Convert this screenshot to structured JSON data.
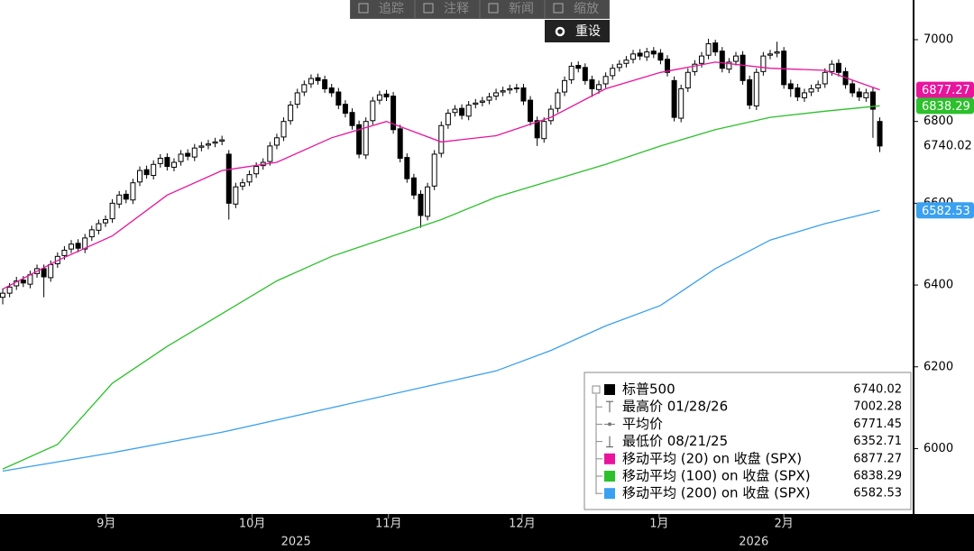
{
  "toolbar": {
    "buttons": [
      "追踪",
      "注释",
      "新闻",
      "缩放"
    ],
    "reset": "重设"
  },
  "chart_data": {
    "type": "candlestick",
    "xlim": [
      -0.4,
      132.8
    ],
    "ylim": [
      5840,
      7097
    ],
    "yticks": [
      6000,
      6200,
      6400,
      6600,
      6800,
      7000
    ],
    "xticks": [
      {
        "value": 15.1,
        "label": "9月"
      },
      {
        "value": 36.4,
        "label": "10月"
      },
      {
        "value": 56.3,
        "label": "11月"
      },
      {
        "value": 75.8,
        "label": "12月"
      },
      {
        "value": 95.8,
        "label": "1月"
      },
      {
        "value": 114,
        "label": "2月"
      }
    ],
    "year_labels": [
      {
        "value": 42.8,
        "label": "2025"
      },
      {
        "value": 109.6,
        "label": "2026"
      }
    ],
    "ohlc": {
      "name": "标普500",
      "x": [
        0,
        1,
        2,
        3,
        4,
        5,
        6,
        7,
        8,
        9,
        10,
        11,
        12,
        13,
        14,
        15,
        16,
        17,
        18,
        19,
        20,
        21,
        22,
        23,
        24,
        25,
        26,
        27,
        28,
        29,
        30,
        31,
        32,
        33,
        34,
        35,
        36,
        37,
        38,
        39,
        40,
        41,
        42,
        43,
        44,
        45,
        46,
        47,
        48,
        49,
        50,
        51,
        52,
        53,
        54,
        55,
        56,
        57,
        58,
        59,
        60,
        61,
        62,
        63,
        64,
        65,
        66,
        67,
        68,
        69,
        70,
        71,
        72,
        73,
        74,
        75,
        76,
        77,
        78,
        79,
        80,
        81,
        82,
        83,
        84,
        85,
        86,
        87,
        88,
        89,
        90,
        91,
        92,
        93,
        94,
        95,
        96,
        97,
        98,
        99,
        100,
        101,
        102,
        103,
        104,
        105,
        106,
        107,
        108,
        109,
        110,
        111,
        112,
        113,
        114,
        115,
        116,
        117,
        118,
        119,
        120,
        121,
        122,
        123,
        124,
        125,
        126,
        127,
        128
      ],
      "open": [
        6370,
        6380,
        6398,
        6412,
        6402,
        6428,
        6440,
        6418,
        6452,
        6472,
        6488,
        6502,
        6488,
        6518,
        6534,
        6552,
        6562,
        6598,
        6622,
        6608,
        6652,
        6682,
        6668,
        6697,
        6712,
        6688,
        6702,
        6722,
        6713,
        6737,
        6742,
        6747,
        6752,
        6720,
        6598,
        6642,
        6652,
        6672,
        6692,
        6702,
        6742,
        6762,
        6802,
        6842,
        6872,
        6892,
        6907,
        6902,
        6882,
        6872,
        6842,
        6822,
        6792,
        6718,
        6802,
        6852,
        6867,
        6862,
        6782,
        6712,
        6662,
        6622,
        6568,
        6642,
        6722,
        6792,
        6822,
        6832,
        6813,
        6842,
        6847,
        6852,
        6862,
        6872,
        6877,
        6882,
        6882,
        6852,
        6802,
        6758,
        6802,
        6832,
        6872,
        6902,
        6937,
        6932,
        6902,
        6878,
        6892,
        6912,
        6932,
        6942,
        6952,
        6967,
        6958,
        6972,
        6967,
        6952,
        6900,
        6808,
        6882,
        6922,
        6942,
        6962,
        6992,
        6972,
        6928,
        6947,
        6962,
        6902,
        6838,
        6922,
        6962,
        6967,
        6972,
        6892,
        6882,
        6858,
        6872,
        6882,
        6892,
        6922,
        6942,
        6922,
        6892,
        6872,
        6858,
        6872,
        6800
      ],
      "high": [
        6392,
        6405,
        6420,
        6422,
        6435,
        6450,
        6450,
        6460,
        6480,
        6495,
        6510,
        6512,
        6525,
        6545,
        6560,
        6570,
        6610,
        6630,
        6632,
        6660,
        6690,
        6692,
        6705,
        6720,
        6722,
        6710,
        6730,
        6732,
        6745,
        6750,
        6755,
        6760,
        6765,
        6730,
        6650,
        6660,
        6680,
        6700,
        6710,
        6750,
        6770,
        6810,
        6850,
        6880,
        6900,
        6915,
        6917,
        6912,
        6892,
        6882,
        6852,
        6832,
        6802,
        6810,
        6860,
        6875,
        6877,
        6872,
        6792,
        6722,
        6672,
        6632,
        6650,
        6730,
        6800,
        6830,
        6840,
        6842,
        6850,
        6855,
        6860,
        6870,
        6880,
        6885,
        6890,
        6892,
        6892,
        6862,
        6812,
        6810,
        6840,
        6880,
        6910,
        6945,
        6947,
        6942,
        6912,
        6900,
        6920,
        6940,
        6950,
        6960,
        6975,
        6977,
        6980,
        6982,
        6977,
        6962,
        6910,
        6890,
        6930,
        6950,
        6970,
        7002.28,
        7000,
        6982,
        6955,
        6970,
        6972,
        6912,
        6930,
        6970,
        6975,
        6995,
        6982,
        6902,
        6892,
        6880,
        6890,
        6900,
        6930,
        6950,
        6952,
        6932,
        6902,
        6882,
        6880,
        6882,
        6810
      ],
      "low": [
        6352.71,
        6370,
        6388,
        6395,
        6392,
        6418,
        6370,
        6408,
        6442,
        6462,
        6478,
        6480,
        6478,
        6508,
        6524,
        6542,
        6552,
        6588,
        6600,
        6598,
        6642,
        6660,
        6658,
        6687,
        6680,
        6678,
        6692,
        6705,
        6703,
        6727,
        6732,
        6737,
        6742,
        6560,
        6588,
        6632,
        6642,
        6662,
        6682,
        6692,
        6732,
        6752,
        6792,
        6832,
        6862,
        6882,
        6890,
        6870,
        6860,
        6830,
        6810,
        6780,
        6710,
        6708,
        6792,
        6842,
        6850,
        6770,
        6700,
        6650,
        6610,
        6540,
        6558,
        6632,
        6712,
        6782,
        6812,
        6805,
        6803,
        6832,
        6837,
        6842,
        6852,
        6862,
        6867,
        6870,
        6840,
        6790,
        6740,
        6748,
        6792,
        6822,
        6862,
        6892,
        6920,
        6890,
        6860,
        6868,
        6882,
        6902,
        6922,
        6932,
        6942,
        6950,
        6948,
        6955,
        6940,
        6910,
        6800,
        6798,
        6872,
        6912,
        6932,
        6952,
        6960,
        6920,
        6918,
        6937,
        6890,
        6830,
        6828,
        6912,
        6952,
        6957,
        6880,
        6860,
        6850,
        6848,
        6862,
        6872,
        6882,
        6912,
        6910,
        6880,
        6860,
        6850,
        6848,
        6760,
        6725
      ],
      "close": [
        6380,
        6395,
        6410,
        6405,
        6425,
        6440,
        6420,
        6450,
        6470,
        6485,
        6500,
        6490,
        6515,
        6535,
        6550,
        6560,
        6600,
        6620,
        6610,
        6650,
        6680,
        6670,
        6695,
        6710,
        6690,
        6700,
        6720,
        6715,
        6735,
        6740,
        6745,
        6750,
        6755,
        6600,
        6640,
        6650,
        6670,
        6690,
        6700,
        6740,
        6760,
        6800,
        6840,
        6870,
        6890,
        6905,
        6900,
        6880,
        6870,
        6840,
        6820,
        6790,
        6720,
        6800,
        6850,
        6865,
        6860,
        6780,
        6710,
        6660,
        6620,
        6570,
        6640,
        6720,
        6790,
        6820,
        6830,
        6815,
        6840,
        6845,
        6850,
        6860,
        6870,
        6875,
        6880,
        6880,
        6850,
        6800,
        6760,
        6800,
        6830,
        6870,
        6900,
        6935,
        6930,
        6900,
        6880,
        6890,
        6910,
        6930,
        6940,
        6950,
        6965,
        6960,
        6970,
        6965,
        6950,
        6920,
        6810,
        6880,
        6920,
        6940,
        6960,
        6990,
        6970,
        6930,
        6945,
        6960,
        6900,
        6840,
        6920,
        6960,
        6965,
        6970,
        6890,
        6880,
        6860,
        6870,
        6880,
        6890,
        6920,
        6940,
        6920,
        6890,
        6870,
        6860,
        6870,
        6830,
        6740.02
      ]
    },
    "series": [
      {
        "name": "移动平均 (20) on 收盘 (SPX)",
        "color": "#e8149c",
        "x": [
          0,
          8,
          16,
          24,
          32,
          40,
          48,
          56,
          64,
          72,
          80,
          88,
          96,
          104,
          112,
          120,
          128
        ],
        "values": [
          6390,
          6460,
          6520,
          6620,
          6680,
          6700,
          6760,
          6800,
          6750,
          6765,
          6810,
          6880,
          6920,
          6945,
          6930,
          6925,
          6877.27
        ]
      },
      {
        "name": "移动平均 (100) on 收盘 (SPX)",
        "color": "#2cc02c",
        "x": [
          0,
          8,
          16,
          24,
          32,
          40,
          48,
          56,
          64,
          72,
          80,
          88,
          96,
          104,
          112,
          120,
          128
        ],
        "values": [
          5950,
          6010,
          6160,
          6250,
          6330,
          6410,
          6470,
          6515,
          6560,
          6615,
          6655,
          6695,
          6740,
          6780,
          6810,
          6825,
          6838.29
        ]
      },
      {
        "name": "移动平均 (200) on 收盘 (SPX)",
        "color": "#3aa0f0",
        "x": [
          0,
          16,
          32,
          48,
          64,
          72,
          80,
          88,
          96,
          104,
          112,
          120,
          128
        ],
        "values": [
          5945,
          5990,
          6040,
          6100,
          6160,
          6190,
          6240,
          6300,
          6350,
          6440,
          6510,
          6550,
          6582.53
        ]
      }
    ],
    "legend_stats": [
      {
        "label": "最高价 01/28/26",
        "value": 7002.28
      },
      {
        "label": "平均价",
        "value": 6771.45
      },
      {
        "label": "最低价 08/21/25",
        "value": 6352.71
      }
    ]
  }
}
